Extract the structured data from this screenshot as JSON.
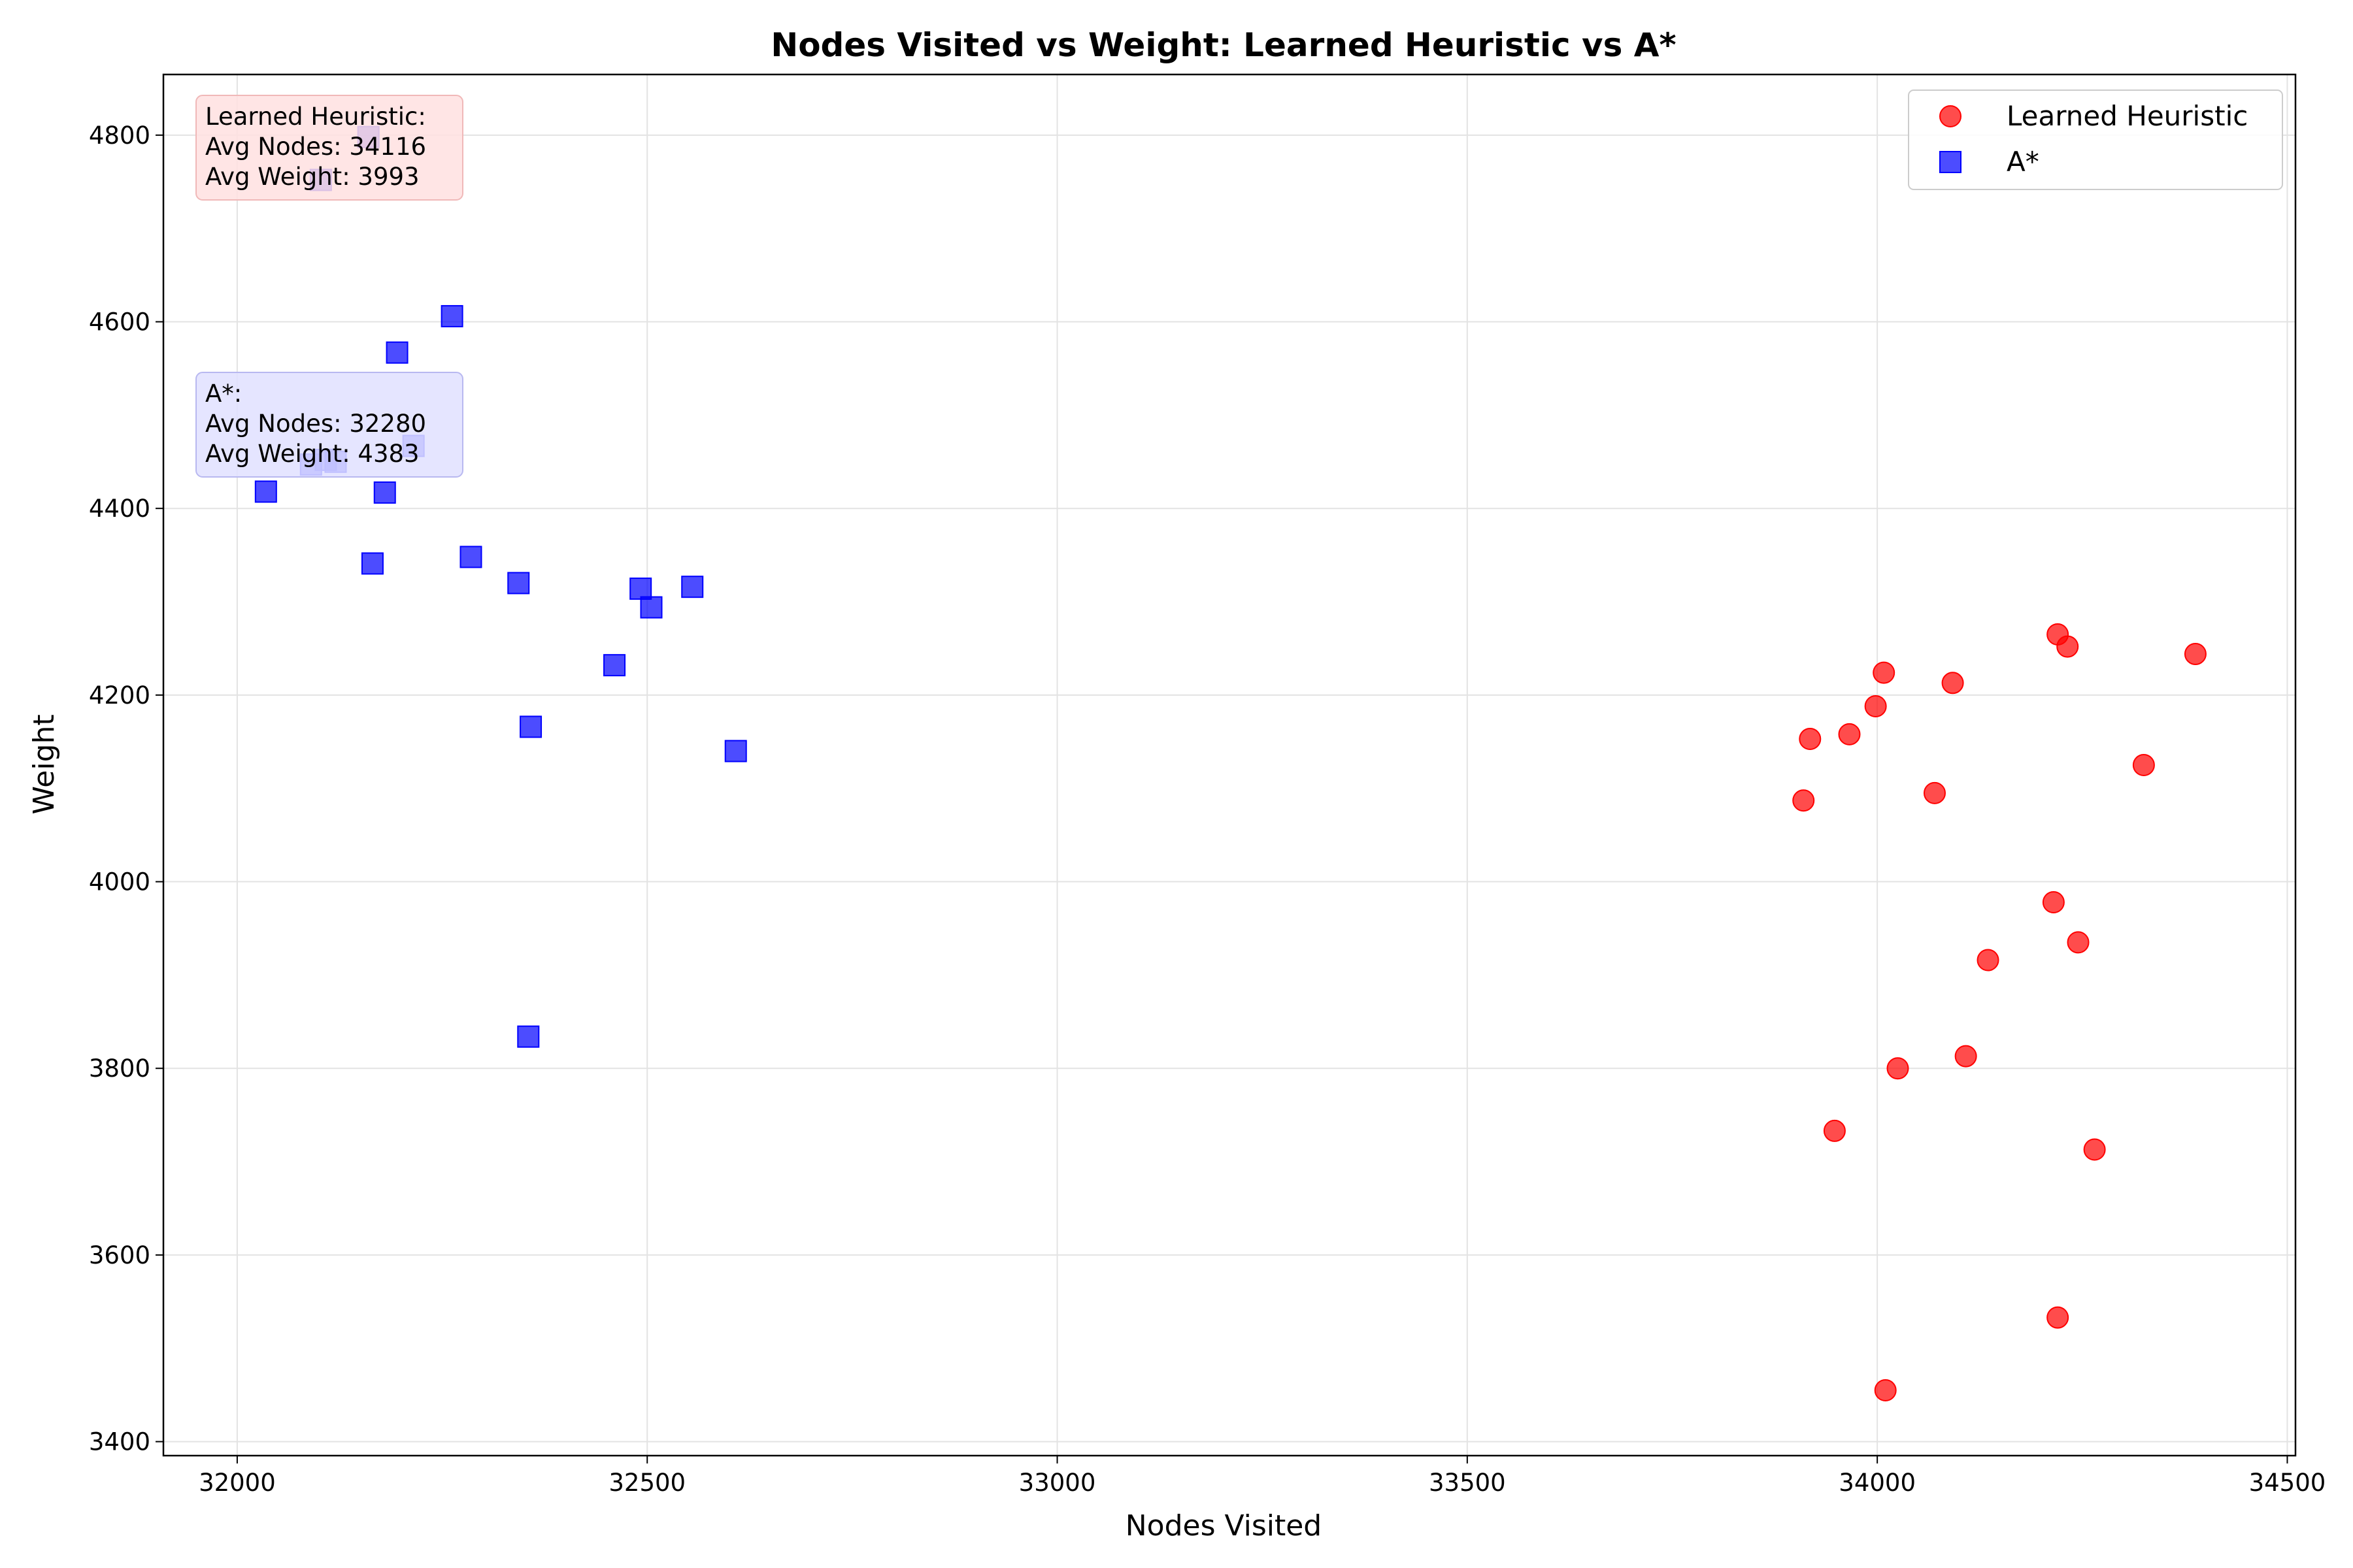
{
  "chart_data": {
    "type": "scatter",
    "title": "Nodes Visited vs Weight: Learned Heuristic vs A*",
    "xlabel": "Nodes Visited",
    "ylabel": "Weight",
    "xlim": [
      31910,
      34510
    ],
    "ylim": [
      3385,
      4865
    ],
    "xticks": [
      32000,
      32500,
      33000,
      33500,
      34000,
      34500
    ],
    "yticks": [
      3400,
      3600,
      3800,
      4000,
      4200,
      4400,
      4600,
      4800
    ],
    "grid": true,
    "legend_position": "top-right",
    "series": [
      {
        "name": "Learned Heuristic",
        "marker": "circle",
        "color": "#ff0000",
        "points": [
          [
            33910,
            4087
          ],
          [
            33918,
            4153
          ],
          [
            33948,
            3733
          ],
          [
            33966,
            4158
          ],
          [
            33998,
            4188
          ],
          [
            34008,
            4224
          ],
          [
            34010,
            3455
          ],
          [
            34025,
            3800
          ],
          [
            34070,
            4095
          ],
          [
            34092,
            4213
          ],
          [
            34108,
            3813
          ],
          [
            34135,
            3916
          ],
          [
            34215,
            3978
          ],
          [
            34220,
            4265
          ],
          [
            34220,
            3533
          ],
          [
            34232,
            4252
          ],
          [
            34245,
            3935
          ],
          [
            34265,
            3713
          ],
          [
            34325,
            4125
          ],
          [
            34388,
            4244
          ]
        ]
      },
      {
        "name": "A*",
        "marker": "square",
        "color": "#0000ff",
        "points": [
          [
            32035,
            4418
          ],
          [
            32090,
            4447
          ],
          [
            32102,
            4752
          ],
          [
            32108,
            4452
          ],
          [
            32120,
            4450
          ],
          [
            32160,
            4798
          ],
          [
            32165,
            4341
          ],
          [
            32180,
            4417
          ],
          [
            32195,
            4567
          ],
          [
            32215,
            4467
          ],
          [
            32262,
            4606
          ],
          [
            32285,
            4348
          ],
          [
            32343,
            4320
          ],
          [
            32355,
            3834
          ],
          [
            32358,
            4166
          ],
          [
            32460,
            4232
          ],
          [
            32492,
            4314
          ],
          [
            32505,
            4294
          ],
          [
            32555,
            4316
          ],
          [
            32608,
            4140
          ]
        ]
      }
    ],
    "annotations": [
      {
        "lines": [
          "Learned Heuristic:",
          "Avg Nodes: 34116",
          "Avg Weight: 3993"
        ],
        "box_color": "#ffe0e0",
        "border_color": "#f0b8b8"
      },
      {
        "lines": [
          "A*:",
          "Avg Nodes: 32280",
          "Avg Weight: 4383"
        ],
        "box_color": "#e0e0ff",
        "border_color": "#b8b8f0"
      }
    ]
  }
}
